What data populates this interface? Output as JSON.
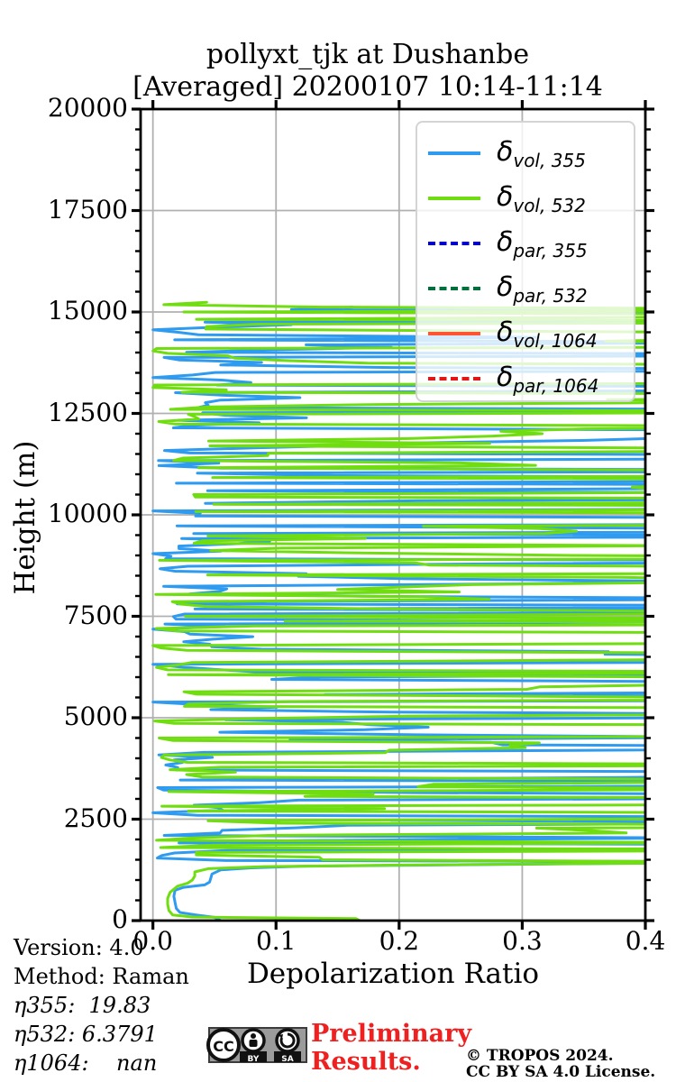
{
  "title": {
    "line1": "pollyxt_tjk at Dushanbe",
    "line2": "[Averaged] 20200107 10:14-11:14"
  },
  "axes": {
    "xlabel": "Depolarization Ratio",
    "ylabel": "Height (m)",
    "xlim": [
      -0.01,
      0.4
    ],
    "ylim": [
      0,
      20000
    ],
    "xticks": [
      "0.0",
      "0.1",
      "0.2",
      "0.3",
      "0.4"
    ],
    "xtick_values": [
      0.0,
      0.1,
      0.2,
      0.3,
      0.4
    ],
    "yticks": [
      "0",
      "2500",
      "5000",
      "7500",
      "10000",
      "12500",
      "15000",
      "17500",
      "20000"
    ],
    "ytick_values": [
      0,
      2500,
      5000,
      7500,
      10000,
      12500,
      15000,
      17500,
      20000
    ],
    "y_minor_step": 500,
    "grid": true,
    "grid_color": "#b0b0b0",
    "spine_color": "#000000"
  },
  "legend": {
    "entries": [
      {
        "base": "δ",
        "sub": "vol, 355",
        "color": "#2e9bf0",
        "dashed": false
      },
      {
        "base": "δ",
        "sub": "vol, 532",
        "color": "#70dd10",
        "dashed": false
      },
      {
        "base": "δ",
        "sub": "par, 355",
        "color": "#0000cd",
        "dashed": true
      },
      {
        "base": "δ",
        "sub": "par, 532",
        "color": "#00703a",
        "dashed": true
      },
      {
        "base": "δ",
        "sub": "vol, 1064",
        "color": "#ff5533",
        "dashed": false
      },
      {
        "base": "δ",
        "sub": "par, 1064",
        "color": "#e51515",
        "dashed": true
      }
    ]
  },
  "chart_data": {
    "type": "line",
    "xlabel": "Depolarization Ratio",
    "ylabel": "Height (m)",
    "xlim": [
      -0.01,
      0.4
    ],
    "ylim": [
      0,
      20000
    ],
    "note": "Lidar depolarization-ratio profiles vs height. Below ~1500 m the profiles are coherent; from ~1500 m to ~15300 m the signal is pure noise (horizontal streaks spanning the axis, many clipped at 0.4); above ~15300 m no data. The par,355 / par,532 / vol,1064 / par,1064 series are not visible (nan).",
    "series": [
      {
        "name": "δ_vol,355",
        "color": "#2e9bf0",
        "style": "solid",
        "visible": true,
        "profile_points": [
          [
            0,
            0.055
          ],
          [
            80,
            0.05
          ],
          [
            140,
            0.035
          ],
          [
            200,
            0.022
          ],
          [
            300,
            0.019
          ],
          [
            450,
            0.018
          ],
          [
            600,
            0.017
          ],
          [
            750,
            0.018
          ],
          [
            820,
            0.025
          ],
          [
            880,
            0.042
          ],
          [
            950,
            0.046
          ],
          [
            1050,
            0.047
          ],
          [
            1150,
            0.048
          ],
          [
            1250,
            0.055
          ],
          [
            1300,
            0.08
          ],
          [
            1340,
            0.12
          ],
          [
            1380,
            0.27
          ],
          [
            1420,
            0.42
          ],
          [
            1450,
            0.55
          ]
        ],
        "noise": {
          "h_min": 1480,
          "h_max": 15150,
          "h_step": 62,
          "seed": 20200107,
          "p_repeat": 0.3,
          "jitter": 0.15,
          "p_small": 0.45,
          "small": [
            0.002,
            0.06
          ],
          "p_mid": 0.2,
          "mid": [
            0.07,
            0.32
          ],
          "large": [
            0.33,
            0.85
          ]
        }
      },
      {
        "name": "δ_vol,532",
        "color": "#70dd10",
        "style": "solid",
        "visible": true,
        "profile_points": [
          [
            0,
            0.168
          ],
          [
            50,
            0.165
          ],
          [
            70,
            0.09
          ],
          [
            90,
            0.032
          ],
          [
            140,
            0.016
          ],
          [
            250,
            0.013
          ],
          [
            400,
            0.012
          ],
          [
            550,
            0.012
          ],
          [
            700,
            0.014
          ],
          [
            850,
            0.02
          ],
          [
            920,
            0.028
          ],
          [
            1000,
            0.032
          ],
          [
            1100,
            0.034
          ],
          [
            1200,
            0.034
          ],
          [
            1280,
            0.045
          ],
          [
            1330,
            0.09
          ],
          [
            1370,
            0.2
          ],
          [
            1410,
            0.38
          ],
          [
            1440,
            0.55
          ]
        ],
        "noise": {
          "h_min": 1500,
          "h_max": 15290,
          "h_step": 60,
          "seed": 532,
          "p_repeat": 0.32,
          "jitter": 0.16,
          "p_small": 0.38,
          "small": [
            0.002,
            0.05
          ],
          "p_mid": 0.2,
          "mid": [
            0.08,
            0.33
          ],
          "large": [
            0.34,
            0.9
          ]
        }
      },
      {
        "name": "δ_par,355",
        "color": "#0000cd",
        "style": "dashed",
        "visible": false,
        "profile_points": []
      },
      {
        "name": "δ_par,532",
        "color": "#00703a",
        "style": "dashed",
        "visible": false,
        "profile_points": []
      },
      {
        "name": "δ_vol,1064",
        "color": "#ff5533",
        "style": "solid",
        "visible": false,
        "profile_points": []
      },
      {
        "name": "δ_par,1064",
        "color": "#e51515",
        "style": "dashed",
        "visible": false,
        "profile_points": []
      }
    ]
  },
  "annotations": {
    "version": "Version: 4.0",
    "method": "Method: Raman",
    "eta355": "η355:  19.83",
    "eta532": "η532: 6.3791",
    "eta1064": "η1064:    nan"
  },
  "footer": {
    "preliminary_line1": "Preliminary",
    "preliminary_line2": "Results.",
    "preliminary_color": "#ee2020",
    "copyright_line1": "© TROPOS 2024.",
    "copyright_line2": "CC BY SA 4.0 License.",
    "cc_badge": {
      "cc": "CC",
      "by": "BY",
      "sa": "SA"
    }
  }
}
